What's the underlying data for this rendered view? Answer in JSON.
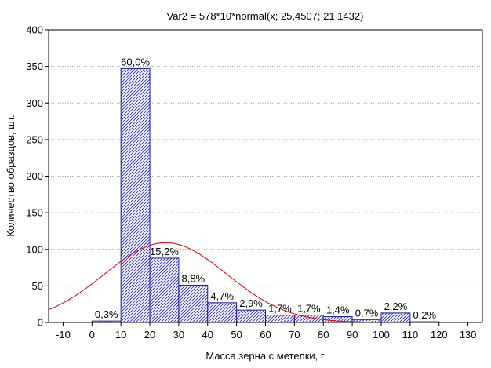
{
  "chart_data": {
    "type": "bar",
    "title": "Var2 = 578*10*normal(x; 25,4507; 21,1432)",
    "xlabel": "Масса зерна с метелки, г",
    "ylabel": "Количество образцов, шт.",
    "xlim": [
      -15,
      135
    ],
    "ylim": [
      0,
      400
    ],
    "x_ticks": [
      -10,
      0,
      10,
      20,
      30,
      40,
      50,
      60,
      70,
      80,
      90,
      100,
      110,
      120,
      130
    ],
    "y_ticks": [
      0,
      50,
      100,
      150,
      200,
      250,
      300,
      350,
      400
    ],
    "grid": "horizontal-dotted",
    "bins": [
      {
        "from": 0,
        "to": 10,
        "value": 2,
        "label": "0,3%"
      },
      {
        "from": 10,
        "to": 20,
        "value": 347,
        "label": "60,0%"
      },
      {
        "from": 20,
        "to": 30,
        "value": 88,
        "label": "15,2%"
      },
      {
        "from": 30,
        "to": 40,
        "value": 51,
        "label": "8,8%"
      },
      {
        "from": 40,
        "to": 50,
        "value": 27,
        "label": "4,7%"
      },
      {
        "from": 50,
        "to": 60,
        "value": 17,
        "label": "2,9%"
      },
      {
        "from": 60,
        "to": 70,
        "value": 10,
        "label": "1,7%"
      },
      {
        "from": 70,
        "to": 80,
        "value": 10,
        "label": "1,7%"
      },
      {
        "from": 80,
        "to": 90,
        "value": 8,
        "label": "1,4%"
      },
      {
        "from": 90,
        "to": 100,
        "value": 4,
        "label": "0,7%"
      },
      {
        "from": 100,
        "to": 110,
        "value": 13,
        "label": "2,2%"
      },
      {
        "from": 110,
        "to": 120,
        "value": 1,
        "label": "0,2%"
      }
    ],
    "normal_fit": {
      "n": 578,
      "bin_width": 10,
      "mean": 25.4507,
      "sd": 21.1432
    },
    "colors": {
      "bar_edge": "#1a1aa0",
      "bar_hatch": "#2b2bb8",
      "curve": "#d40000",
      "grid": "#9a9a9a"
    }
  }
}
